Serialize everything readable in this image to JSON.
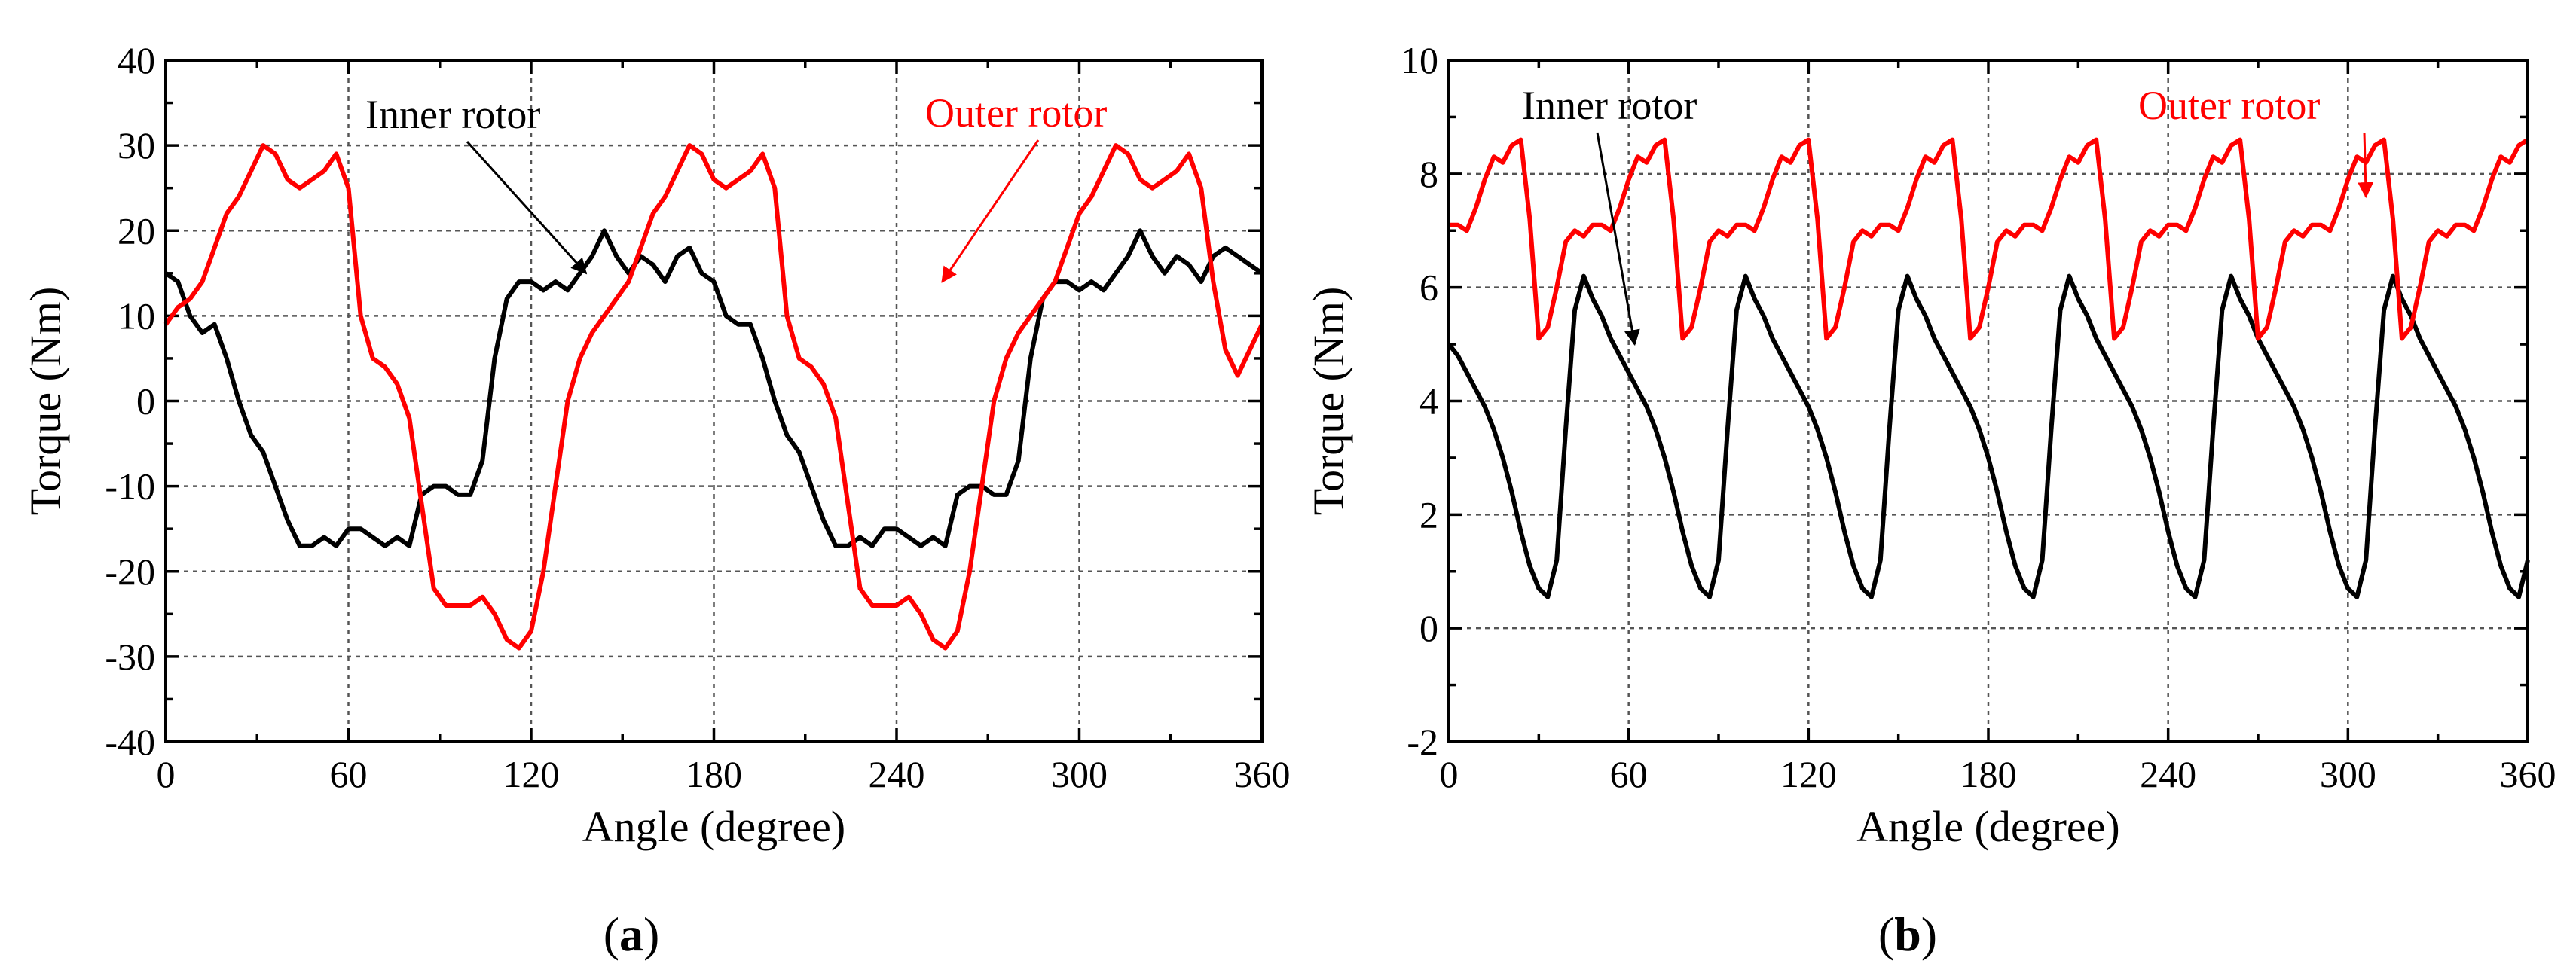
{
  "chart_data": [
    {
      "id": "a",
      "type": "line",
      "caption": "a",
      "xlabel": "Angle (degree)",
      "ylabel": "Torque (Nm)",
      "xlim": [
        0,
        360
      ],
      "ylim": [
        -40,
        40
      ],
      "xticks": [
        0,
        60,
        120,
        180,
        240,
        300,
        360
      ],
      "yticks": [
        -40,
        -30,
        -20,
        -10,
        0,
        10,
        20,
        30,
        40
      ],
      "xtick_labels": [
        "0",
        "60",
        "120",
        "180",
        "240",
        "300",
        "360"
      ],
      "ytick_labels": [
        "-40",
        "-30",
        "-20",
        "-10",
        "0",
        "10",
        "20",
        "30",
        "40"
      ],
      "grid": true,
      "series": [
        {
          "name": "Inner rotor",
          "color": "#000000",
          "x": [
            0,
            4,
            8,
            12,
            16,
            20,
            24,
            28,
            32,
            36,
            40,
            44,
            48,
            52,
            56,
            60,
            64,
            68,
            72,
            76,
            80,
            84,
            88,
            92,
            96,
            100,
            104,
            108,
            112,
            116,
            120,
            124,
            128,
            132,
            136,
            140,
            144,
            148,
            152,
            156,
            160,
            164,
            168,
            172,
            176,
            180,
            184,
            188,
            192,
            196,
            200,
            204,
            208,
            212,
            216,
            220,
            224,
            228,
            232,
            236,
            240,
            244,
            248,
            252,
            256,
            260,
            264,
            268,
            272,
            276,
            280,
            284,
            288,
            292,
            296,
            300,
            304,
            308,
            312,
            316,
            320,
            324,
            328,
            332,
            336,
            340,
            344,
            348,
            352,
            356,
            360
          ],
          "values": [
            15,
            14,
            10,
            8,
            9,
            5,
            0,
            -4,
            -6,
            -10,
            -14,
            -17,
            -17,
            -16,
            -17,
            -15,
            -15,
            -16,
            -17,
            -16,
            -17,
            -11,
            -10,
            -10,
            -11,
            -11,
            -7,
            5,
            12,
            14,
            14,
            13,
            14,
            13,
            15,
            17,
            20,
            17,
            15,
            17,
            16,
            14,
            17,
            18,
            15,
            14,
            10,
            9,
            9,
            5,
            0,
            -4,
            -6,
            -10,
            -14,
            -17,
            -17,
            -16,
            -17,
            -15,
            -15,
            -16,
            -17,
            -16,
            -17,
            -11,
            -10,
            -10,
            -11,
            -11,
            -7,
            5,
            12,
            14,
            14,
            13,
            14,
            13,
            15,
            17,
            20,
            17,
            15,
            17,
            16,
            14,
            17,
            18,
            17,
            16,
            15
          ]
        },
        {
          "name": "Outer rotor",
          "color": "#ff0000",
          "x": [
            0,
            4,
            8,
            12,
            16,
            20,
            24,
            28,
            32,
            36,
            40,
            44,
            48,
            52,
            56,
            60,
            64,
            68,
            72,
            76,
            80,
            84,
            88,
            92,
            96,
            100,
            104,
            108,
            112,
            116,
            120,
            124,
            128,
            132,
            136,
            140,
            144,
            148,
            152,
            156,
            160,
            164,
            168,
            172,
            176,
            180,
            184,
            188,
            192,
            196,
            200,
            204,
            208,
            212,
            216,
            220,
            224,
            228,
            232,
            236,
            240,
            244,
            248,
            252,
            256,
            260,
            264,
            268,
            272,
            276,
            280,
            284,
            288,
            292,
            296,
            300,
            304,
            308,
            312,
            316,
            320,
            324,
            328,
            332,
            336,
            340,
            344,
            348,
            352,
            356,
            360
          ],
          "values": [
            9,
            11,
            12,
            14,
            18,
            22,
            24,
            27,
            30,
            29,
            26,
            25,
            26,
            27,
            29,
            25,
            10,
            5,
            4,
            2,
            -2,
            -12,
            -22,
            -24,
            -24,
            -24,
            -23,
            -25,
            -28,
            -29,
            -27,
            -20,
            -10,
            0,
            5,
            8,
            10,
            12,
            14,
            18,
            22,
            24,
            27,
            30,
            29,
            26,
            25,
            26,
            27,
            29,
            25,
            10,
            5,
            4,
            2,
            -2,
            -12,
            -22,
            -24,
            -24,
            -24,
            -23,
            -25,
            -28,
            -29,
            -27,
            -20,
            -10,
            0,
            5,
            8,
            10,
            12,
            14,
            18,
            22,
            24,
            27,
            30,
            29,
            26,
            25,
            26,
            27,
            29,
            25,
            14,
            6,
            3,
            6,
            9
          ]
        }
      ],
      "annotations": [
        {
          "text": "Inner rotor",
          "color": "#000000",
          "series": "Inner rotor",
          "arrow_to_x": 138,
          "arrow_to_y": 15
        },
        {
          "text": "Outer rotor",
          "color": "#ff0000",
          "series": "Outer rotor",
          "arrow_to_x": 255,
          "arrow_to_y": 14
        }
      ]
    },
    {
      "id": "b",
      "type": "line",
      "caption": "b",
      "xlabel": "Angle (degree)",
      "ylabel": "Torque (Nm)",
      "xlim": [
        0,
        360
      ],
      "ylim": [
        -2,
        10
      ],
      "xticks": [
        0,
        60,
        120,
        180,
        240,
        300,
        360
      ],
      "yticks": [
        -2,
        0,
        2,
        4,
        6,
        8,
        10
      ],
      "xtick_labels": [
        "0",
        "60",
        "120",
        "180",
        "240",
        "300",
        "360"
      ],
      "ytick_labels": [
        "-2",
        "0",
        "2",
        "4",
        "6",
        "8",
        "10"
      ],
      "grid": true,
      "series": [
        {
          "name": "Inner rotor",
          "color": "#000000",
          "x": [
            0,
            3,
            6,
            9,
            12,
            15,
            18,
            21,
            24,
            27,
            30,
            33,
            36,
            39,
            42,
            45,
            48,
            51,
            54,
            57,
            60,
            63,
            66,
            69,
            72,
            75,
            78,
            81,
            84,
            87,
            90,
            93,
            96,
            99,
            102,
            105,
            108,
            111,
            114,
            117,
            120,
            123,
            126,
            129,
            132,
            135,
            138,
            141,
            144,
            147,
            150,
            153,
            156,
            159,
            162,
            165,
            168,
            171,
            174,
            177,
            180,
            183,
            186,
            189,
            192,
            195,
            198,
            201,
            204,
            207,
            210,
            213,
            216,
            219,
            222,
            225,
            228,
            231,
            234,
            237,
            240,
            243,
            246,
            249,
            252,
            255,
            258,
            261,
            264,
            267,
            270,
            273,
            276,
            279,
            282,
            285,
            288,
            291,
            294,
            297,
            300,
            303,
            306,
            309,
            312,
            315,
            318,
            321,
            324,
            327,
            330,
            333,
            336,
            339,
            342,
            345,
            348,
            351,
            354,
            357,
            360
          ],
          "values": [
            5.0,
            4.8,
            4.5,
            4.2,
            3.9,
            3.5,
            3.0,
            2.4,
            1.7,
            1.1,
            0.7,
            0.55,
            1.2,
            3.5,
            5.6,
            6.2,
            5.8,
            5.5,
            5.1,
            4.8,
            4.5,
            4.2,
            3.9,
            3.5,
            3.0,
            2.4,
            1.7,
            1.1,
            0.7,
            0.55,
            1.2,
            3.5,
            5.6,
            6.2,
            5.8,
            5.5,
            5.1,
            4.8,
            4.5,
            4.2,
            3.9,
            3.5,
            3.0,
            2.4,
            1.7,
            1.1,
            0.7,
            0.55,
            1.2,
            3.5,
            5.6,
            6.2,
            5.8,
            5.5,
            5.1,
            4.8,
            4.5,
            4.2,
            3.9,
            3.5,
            3.0,
            2.4,
            1.7,
            1.1,
            0.7,
            0.55,
            1.2,
            3.5,
            5.6,
            6.2,
            5.8,
            5.5,
            5.1,
            4.8,
            4.5,
            4.2,
            3.9,
            3.5,
            3.0,
            2.4,
            1.7,
            1.1,
            0.7,
            0.55,
            1.2,
            3.5,
            5.6,
            6.2,
            5.8,
            5.5,
            5.1,
            4.8,
            4.5,
            4.2,
            3.9,
            3.5,
            3.0,
            2.4,
            1.7,
            1.1,
            0.7,
            0.55,
            1.2,
            3.5,
            5.6,
            6.2,
            5.8,
            5.5,
            5.1,
            4.8,
            4.5,
            4.2,
            3.9,
            3.5,
            3.0,
            2.4,
            1.7,
            1.1,
            0.7,
            0.55,
            1.2
          ]
        },
        {
          "name": "Outer rotor",
          "color": "#ff0000",
          "x": [
            0,
            3,
            6,
            9,
            12,
            15,
            18,
            21,
            24,
            27,
            30,
            33,
            36,
            39,
            42,
            45,
            48,
            51,
            54,
            57,
            60,
            63,
            66,
            69,
            72,
            75,
            78,
            81,
            84,
            87,
            90,
            93,
            96,
            99,
            102,
            105,
            108,
            111,
            114,
            117,
            120,
            123,
            126,
            129,
            132,
            135,
            138,
            141,
            144,
            147,
            150,
            153,
            156,
            159,
            162,
            165,
            168,
            171,
            174,
            177,
            180,
            183,
            186,
            189,
            192,
            195,
            198,
            201,
            204,
            207,
            210,
            213,
            216,
            219,
            222,
            225,
            228,
            231,
            234,
            237,
            240,
            243,
            246,
            249,
            252,
            255,
            258,
            261,
            264,
            267,
            270,
            273,
            276,
            279,
            282,
            285,
            288,
            291,
            294,
            297,
            300,
            303,
            306,
            309,
            312,
            315,
            318,
            321,
            324,
            327,
            330,
            333,
            336,
            339,
            342,
            345,
            348,
            351,
            354,
            357,
            360
          ],
          "values": [
            7.1,
            7.1,
            7.0,
            7.4,
            7.9,
            8.3,
            8.2,
            8.5,
            8.6,
            7.2,
            5.1,
            5.3,
            6.0,
            6.8,
            7.0,
            6.9,
            7.1,
            7.1,
            7.0,
            7.4,
            7.9,
            8.3,
            8.2,
            8.5,
            8.6,
            7.2,
            5.1,
            5.3,
            6.0,
            6.8,
            7.0,
            6.9,
            7.1,
            7.1,
            7.0,
            7.4,
            7.9,
            8.3,
            8.2,
            8.5,
            8.6,
            7.2,
            5.1,
            5.3,
            6.0,
            6.8,
            7.0,
            6.9,
            7.1,
            7.1,
            7.0,
            7.4,
            7.9,
            8.3,
            8.2,
            8.5,
            8.6,
            7.2,
            5.1,
            5.3,
            6.0,
            6.8,
            7.0,
            6.9,
            7.1,
            7.1,
            7.0,
            7.4,
            7.9,
            8.3,
            8.2,
            8.5,
            8.6,
            7.2,
            5.1,
            5.3,
            6.0,
            6.8,
            7.0,
            6.9,
            7.1,
            7.1,
            7.0,
            7.4,
            7.9,
            8.3,
            8.2,
            8.5,
            8.6,
            7.2,
            5.1,
            5.3,
            6.0,
            6.8,
            7.0,
            6.9,
            7.1,
            7.1,
            7.0,
            7.4,
            7.9,
            8.3,
            8.2,
            8.5,
            8.6,
            7.2,
            5.1,
            5.3,
            6.0,
            6.8,
            7.0,
            6.9,
            7.1,
            7.1,
            7.0,
            7.4,
            7.9,
            8.3,
            8.2,
            8.5,
            8.6
          ]
        }
      ],
      "annotations": [
        {
          "text": "Inner rotor",
          "color": "#000000",
          "series": "Inner rotor",
          "arrow_to_x": 62,
          "arrow_to_y": 5.0
        },
        {
          "text": "Outer rotor",
          "color": "#ff0000",
          "series": "Outer rotor",
          "arrow_to_x": 306,
          "arrow_to_y": 7.6
        }
      ]
    }
  ]
}
